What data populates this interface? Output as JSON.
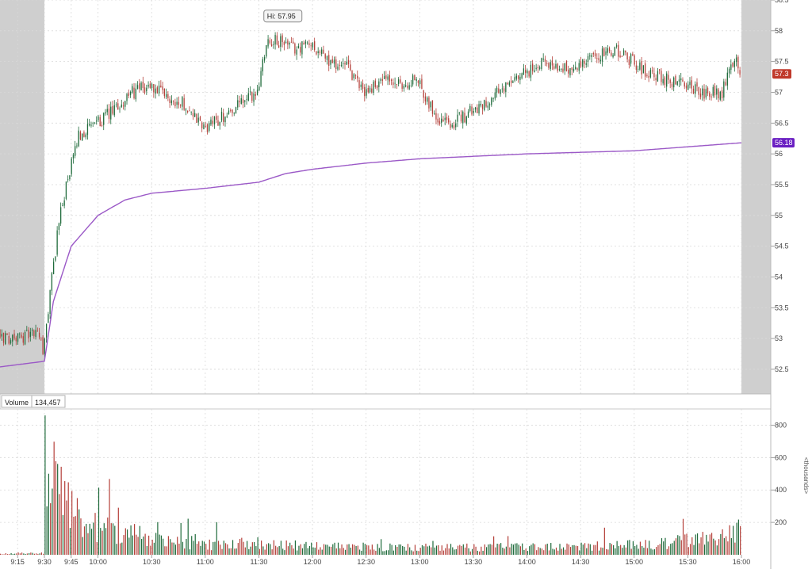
{
  "colors": {
    "up": "#1f6b3b",
    "down": "#b5403a",
    "vwap": "#9b59c7",
    "shade": "#cfcfcf",
    "grid": "#d9d9d9",
    "price_tag": "#c0392b",
    "vwap_tag": "#6a1fc2"
  },
  "chart_data": [
    {
      "type": "candlestick",
      "title": "",
      "xlabel": "",
      "ylabel": "",
      "ylim": [
        52.1,
        58.5
      ],
      "y_ticks": [
        "52.5",
        "53",
        "53.5",
        "54",
        "54.5",
        "55",
        "55.5",
        "56",
        "56.5",
        "57",
        "57.5",
        "58",
        "58.5"
      ],
      "x_ticks": [
        "9:15",
        "9:30",
        "9:45",
        "10:00",
        "10:30",
        "11:00",
        "11:30",
        "12:00",
        "12:30",
        "13:00",
        "13:30",
        "14:00",
        "14:30",
        "15:00",
        "15:30",
        "16:00"
      ],
      "session": {
        "start": "9:30",
        "end": "16:00",
        "premarket_shaded": true,
        "postmarket_shaded": true
      },
      "high_marker": {
        "label": "Hi: 57.95",
        "value": 57.95,
        "time": "11:35"
      },
      "last_price_label": "57.3",
      "last_price": 57.3,
      "vwap_label": "56.18",
      "series": [
        {
          "kind": "price_path",
          "x": [
            "9:00",
            "9:15",
            "9:28",
            "9:30",
            "9:35",
            "9:40",
            "9:45",
            "9:50",
            "10:00",
            "10:10",
            "10:20",
            "10:30",
            "10:40",
            "10:50",
            "11:00",
            "11:10",
            "11:20",
            "11:30",
            "11:35",
            "11:45",
            "11:50",
            "12:00",
            "12:10",
            "12:20",
            "12:30",
            "12:40",
            "12:50",
            "13:00",
            "13:10",
            "13:20",
            "13:30",
            "13:40",
            "13:50",
            "14:00",
            "14:10",
            "14:20",
            "14:30",
            "14:40",
            "14:50",
            "15:00",
            "15:10",
            "15:20",
            "15:30",
            "15:40",
            "15:50",
            "15:57",
            "16:00"
          ],
          "values": [
            53.05,
            53.0,
            53.1,
            52.7,
            54.0,
            55.1,
            55.7,
            56.3,
            56.5,
            56.7,
            57.0,
            57.1,
            56.9,
            56.8,
            56.4,
            56.6,
            56.8,
            57.0,
            57.85,
            57.8,
            57.7,
            57.8,
            57.5,
            57.4,
            57.0,
            57.2,
            57.1,
            57.2,
            56.6,
            56.5,
            56.7,
            56.9,
            57.1,
            57.3,
            57.5,
            57.4,
            57.4,
            57.6,
            57.7,
            57.5,
            57.3,
            57.2,
            57.1,
            57.0,
            57.0,
            57.6,
            57.3
          ]
        },
        {
          "kind": "vwap",
          "x": [
            "9:00",
            "9:30",
            "9:35",
            "9:45",
            "10:00",
            "10:15",
            "10:30",
            "11:00",
            "11:30",
            "11:45",
            "12:00",
            "12:30",
            "13:00",
            "14:00",
            "15:00",
            "16:00"
          ],
          "values": [
            52.52,
            52.63,
            53.6,
            54.5,
            55.0,
            55.25,
            55.36,
            55.44,
            55.54,
            55.68,
            55.75,
            55.85,
            55.92,
            56.0,
            56.05,
            56.18
          ]
        }
      ]
    },
    {
      "type": "bar",
      "title": "Volume",
      "current_value_label": "134,457",
      "ylabel": "<thousands>",
      "ylim": [
        0,
        900
      ],
      "y_ticks": [
        "200",
        "400",
        "600",
        "800"
      ],
      "x_ticks": [
        "9:15",
        "9:30",
        "9:45",
        "10:00",
        "10:30",
        "11:00",
        "11:30",
        "12:00",
        "12:30",
        "13:00",
        "13:30",
        "14:00",
        "14:30",
        "15:00",
        "15:30",
        "16:00"
      ],
      "profile": {
        "x": [
          "9:00",
          "9:29",
          "9:30",
          "9:31",
          "9:35",
          "9:40",
          "9:45",
          "10:00",
          "10:30",
          "11:00",
          "11:30",
          "12:00",
          "13:00",
          "14:00",
          "15:00",
          "15:50",
          "16:00"
        ],
        "values": [
          5,
          15,
          860,
          760,
          560,
          420,
          330,
          200,
          130,
          80,
          90,
          65,
          55,
          60,
          75,
          130,
          240
        ]
      }
    }
  ]
}
